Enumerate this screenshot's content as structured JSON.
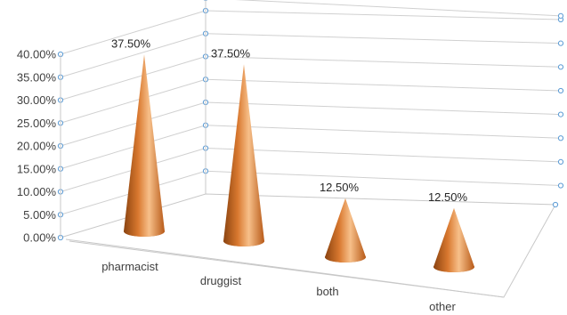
{
  "chart_data": {
    "type": "bar",
    "style": "3d-cone",
    "categories": [
      "pharmacist",
      "druggist",
      "both",
      "other"
    ],
    "values": [
      37.5,
      37.5,
      12.5,
      12.5
    ],
    "data_labels": [
      "37.50%",
      "37.50%",
      "12.50%",
      "12.50%"
    ],
    "y_ticks": [
      "0.00%",
      "5.00%",
      "10.00%",
      "15.00%",
      "20.00%",
      "25.00%",
      "30.00%",
      "35.00%",
      "40.00%"
    ],
    "ylim": [
      0,
      40
    ],
    "y_unit": "%",
    "grid": true,
    "legend": "none",
    "title": "",
    "xlabel": "",
    "ylabel": "",
    "colors": {
      "cone_dark": "#8a4310",
      "cone_mid": "#d9782f",
      "cone_light": "#f7c08a",
      "gridline": "#d0d0d0",
      "marker_stroke": "#5b9bd5"
    }
  }
}
